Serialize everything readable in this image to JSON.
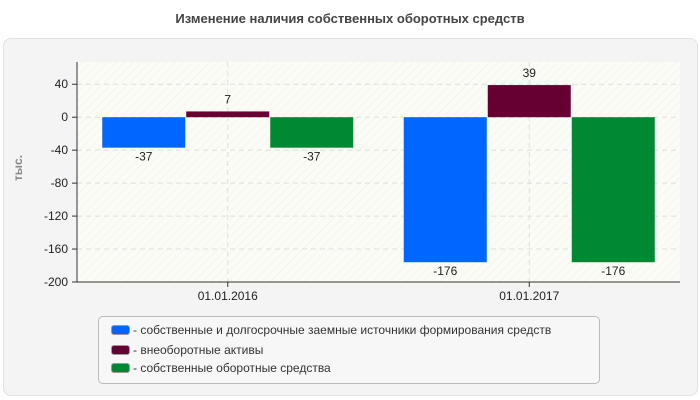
{
  "chart_data": {
    "type": "bar",
    "title": "Изменение наличия собственных оборотных средств",
    "ylabel": "тыс.",
    "xlabel": "",
    "categories": [
      "01.01.2016",
      "01.01.2017"
    ],
    "series": [
      {
        "name": "- собственные и долгосрочные заемные источники формирования средств",
        "color": "#0066ff",
        "values": [
          -37,
          -176
        ]
      },
      {
        "name": "- внеоборотные активы",
        "color": "#660033",
        "values": [
          7,
          39
        ]
      },
      {
        "name": "- собственные оборотные средства",
        "color": "#008833",
        "values": [
          -37,
          -176
        ]
      }
    ],
    "ylim": [
      -200,
      67
    ],
    "yticks": [
      40,
      0,
      -40,
      -80,
      -120,
      -160,
      -200
    ],
    "grid": true,
    "legend": "bottom"
  }
}
